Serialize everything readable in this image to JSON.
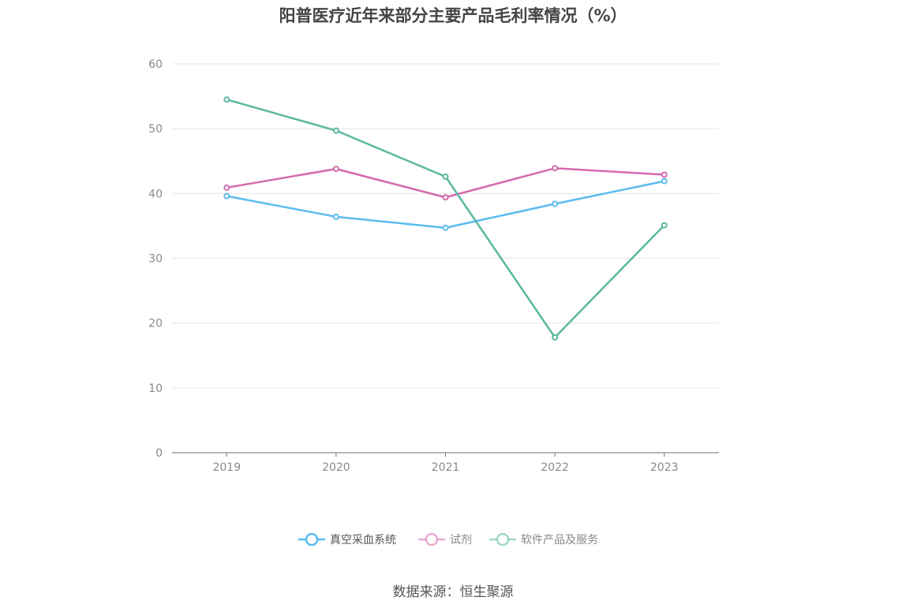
{
  "chart_data": {
    "type": "line",
    "title": "阳普医疗近年来部分主要产品毛利率情况（%）",
    "categories": [
      "2019",
      "2020",
      "2021",
      "2022",
      "2023"
    ],
    "yticks": [
      "0",
      "10",
      "20",
      "30",
      "40",
      "50",
      "60"
    ],
    "ylim": [
      0,
      60
    ],
    "grid": true,
    "legend_position": "bottom-center",
    "series": [
      {
        "name": "真空采血系统",
        "color": "#5bbcf0",
        "values": [
          39.6,
          36.4,
          34.7,
          38.4,
          41.9
        ]
      },
      {
        "name": "试剂",
        "color": "#d46aae",
        "values": [
          40.9,
          43.8,
          39.4,
          43.9,
          42.9
        ]
      },
      {
        "name": "软件产品及服务",
        "color": "#5bb8a0",
        "values": [
          54.5,
          49.7,
          42.6,
          17.8,
          35.1
        ]
      }
    ],
    "legend_text_colors": [
      "#555555",
      "#888888",
      "#888888"
    ],
    "source": "数据来源：恒生聚源"
  }
}
